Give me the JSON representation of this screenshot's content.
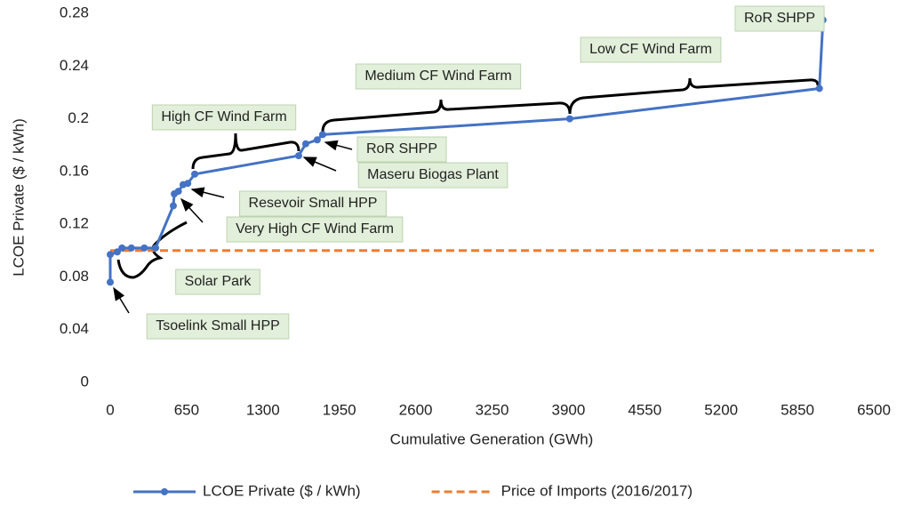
{
  "chart_data": {
    "type": "line",
    "xlabel": "Cumulative Generation (GWh)",
    "ylabel": "LCOE Private ($ / kWh)",
    "xlim": [
      0,
      6500
    ],
    "xticks": [
      0,
      650,
      1300,
      1950,
      2600,
      3250,
      3900,
      4550,
      5200,
      5850,
      6500
    ],
    "ylim": [
      0,
      0.28
    ],
    "yticks": [
      0,
      0.04,
      0.08,
      0.12,
      0.16,
      0.2,
      0.24,
      0.28
    ],
    "grid": false,
    "legend": "bottom",
    "series": [
      {
        "name": "LCOE Private ($ / kWh)",
        "color": "#4472c4",
        "dash": false,
        "markers": true,
        "x": [
          0,
          0,
          60,
          100,
          180,
          290,
          386,
          537,
          545,
          580,
          620,
          660,
          719,
          1604,
          1664,
          1762,
          1808,
          3911,
          6036,
          6067
        ],
        "values": [
          0.076,
          0.097,
          0.099,
          0.102,
          0.102,
          0.102,
          0.102,
          0.134,
          0.143,
          0.145,
          0.15,
          0.151,
          0.158,
          0.172,
          0.181,
          0.184,
          0.188,
          0.2,
          0.223,
          0.275
        ]
      },
      {
        "name": "Price of Imports (2016/2017)",
        "color": "#ed7d31",
        "dash": true,
        "markers": false,
        "x": [
          0,
          6500
        ],
        "values": [
          0.1,
          0.1
        ]
      }
    ],
    "annotations": [
      "RoR SHPP",
      "Low CF Wind Farm",
      "Medium CF Wind Farm",
      "High CF Wind Farm",
      "RoR SHPP",
      "Maseru Biogas Plant",
      "Resevoir Small HPP",
      "Very High CF Wind Farm",
      "Solar Park",
      "Tsoelink Small HPP"
    ]
  }
}
